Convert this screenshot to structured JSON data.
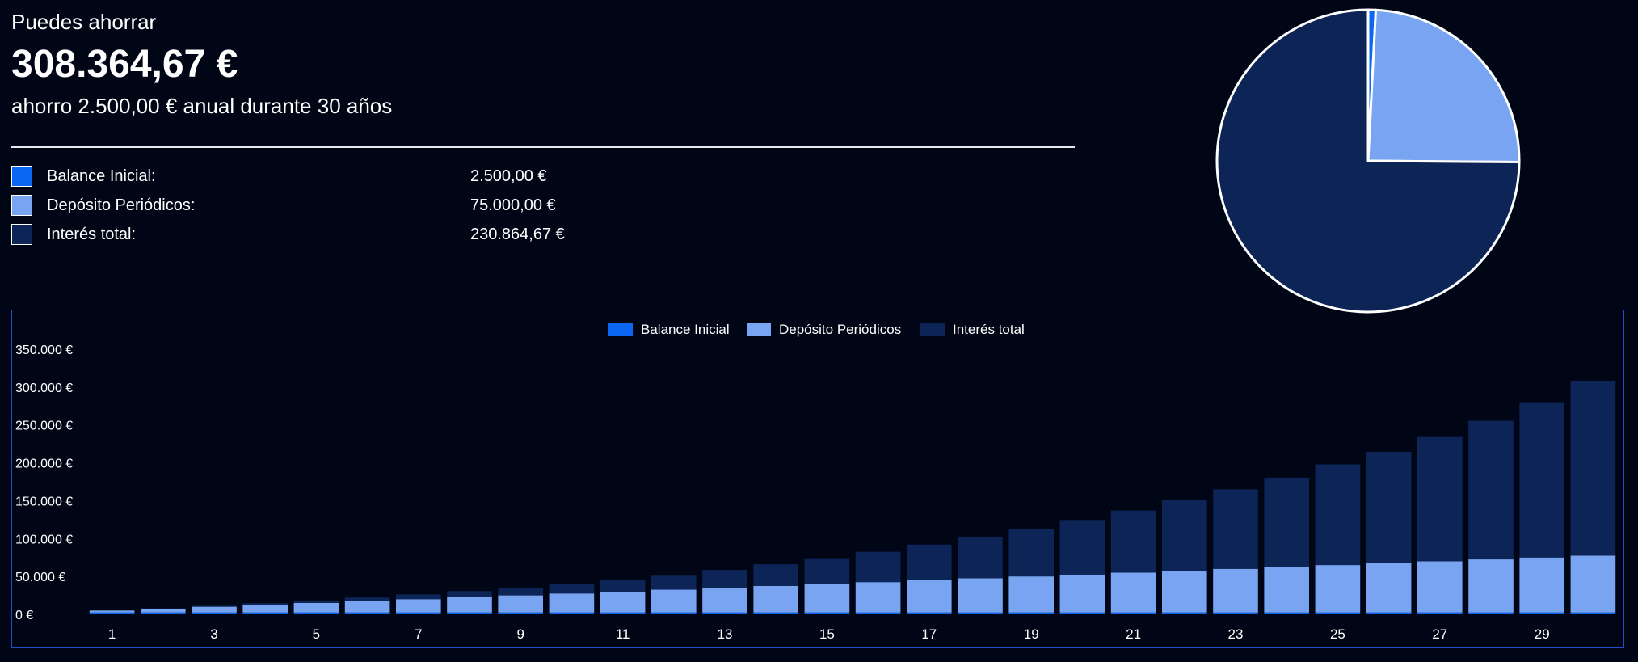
{
  "summary": {
    "lead": "Puedes ahorrar",
    "total": "308.364,67 €",
    "subtitle": "ahorro 2.500,00 € anual durante 30 años",
    "items": [
      {
        "label": "Balance Inicial:",
        "value": "2.500,00 €",
        "color": "#0b67f2"
      },
      {
        "label": "Depósito Periódicos:",
        "value": "75.000,00 €",
        "color": "#78a4f2"
      },
      {
        "label": "Interés total:",
        "value": "230.864,67 €",
        "color": "#0c2456"
      }
    ]
  },
  "pie_data": {
    "type": "pie",
    "labels": [
      "Balance Inicial",
      "Depósito Periódicos",
      "Interés total"
    ],
    "values": [
      2500,
      75000,
      230864.67
    ],
    "colors": [
      "#0b67f2",
      "#78a4f2",
      "#0c2456"
    ]
  },
  "chart_data": {
    "type": "bar",
    "stacked": true,
    "legend": [
      "Balance Inicial",
      "Depósito Periódicos",
      "Interés total"
    ],
    "colors": [
      "#0b67f2",
      "#78a4f2",
      "#0c2456"
    ],
    "ylim": [
      0,
      350000
    ],
    "yticks": [
      0,
      50000,
      100000,
      150000,
      200000,
      250000,
      300000,
      350000
    ],
    "ytick_labels": [
      "0 €",
      "50.000 €",
      "100.000 €",
      "150.000 €",
      "200.000 €",
      "250.000 €",
      "300.000 €",
      "350.000 €"
    ],
    "x": [
      1,
      2,
      3,
      4,
      5,
      6,
      7,
      8,
      9,
      10,
      11,
      12,
      13,
      14,
      15,
      16,
      17,
      18,
      19,
      20,
      21,
      22,
      23,
      24,
      25,
      26,
      27,
      28,
      29,
      30
    ],
    "xtick_labels": [
      "1",
      "3",
      "5",
      "7",
      "9",
      "11",
      "13",
      "15",
      "17",
      "19",
      "21",
      "23",
      "25",
      "27",
      "29"
    ],
    "series": [
      {
        "name": "Balance Inicial",
        "values": [
          2500,
          2500,
          2500,
          2500,
          2500,
          2500,
          2500,
          2500,
          2500,
          2500,
          2500,
          2500,
          2500,
          2500,
          2500,
          2500,
          2500,
          2500,
          2500,
          2500,
          2500,
          2500,
          2500,
          2500,
          2500,
          2500,
          2500,
          2500,
          2500,
          2500
        ]
      },
      {
        "name": "Depósito Periódicos",
        "values": [
          2500,
          5000,
          7500,
          10000,
          12500,
          15000,
          17500,
          20000,
          22500,
          25000,
          27500,
          30000,
          32500,
          35000,
          37500,
          40000,
          42500,
          45000,
          47500,
          50000,
          52500,
          55000,
          57500,
          60000,
          62500,
          65000,
          67500,
          70000,
          72500,
          75000
        ]
      },
      {
        "name": "Interés total",
        "values": [
          0,
          500,
          1300,
          2200,
          3300,
          4700,
          6300,
          8200,
          10400,
          13000,
          15800,
          19500,
          23600,
          28500,
          34000,
          40000,
          47000,
          55000,
          63000,
          72000,
          82000,
          93000,
          105000,
          118000,
          133000,
          147000,
          164000,
          183000,
          205000,
          230864.67
        ]
      }
    ]
  }
}
